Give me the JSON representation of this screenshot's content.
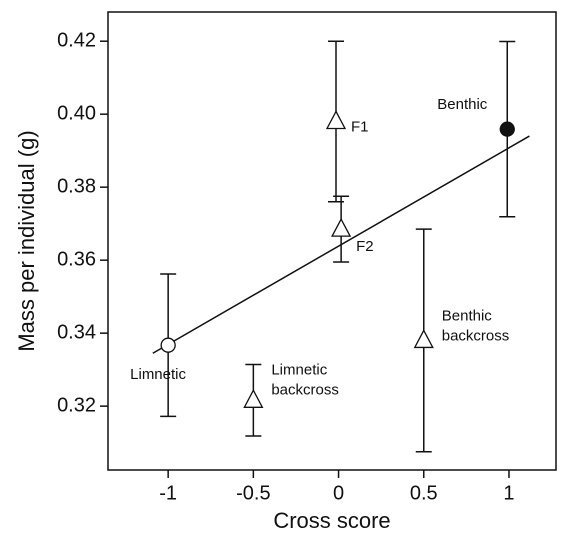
{
  "chart_data": {
    "type": "scatter",
    "xlabel": "Cross score",
    "ylabel": "Mass per individual (g)",
    "xlim": [
      -1.353,
      1.276
    ],
    "ylim": [
      0.3025,
      0.428
    ],
    "xticks": [
      -1,
      -0.5,
      0,
      0.5,
      1
    ],
    "yticks": [
      0.32,
      0.34,
      0.36,
      0.38,
      {
        "value": 0.4,
        "label": "0.40"
      },
      0.42
    ],
    "points": [
      {
        "label": [
          "Limnetic"
        ],
        "x": -1,
        "y": 0.3367,
        "error": 0.0195,
        "marker": "circle-open"
      },
      {
        "label": [
          "Limnetic",
          "backcross"
        ],
        "x": -0.5,
        "y": 0.3216,
        "error": 0.0098,
        "marker": "triangle-open"
      },
      {
        "label": [
          "F1"
        ],
        "x": -0.015,
        "y": 0.398,
        "error": 0.022,
        "marker": "triangle-open"
      },
      {
        "label": [
          "F2"
        ],
        "x": 0.015,
        "y": 0.3685,
        "error": 0.009,
        "marker": "triangle-open"
      },
      {
        "label": [
          "Benthic",
          "backcross"
        ],
        "x": 0.5,
        "y": 0.338,
        "error": 0.0305,
        "marker": "triangle-open"
      },
      {
        "label": [
          "Benthic"
        ],
        "x": 0.99,
        "y": 0.3959,
        "error": 0.024,
        "marker": "circle-filled"
      }
    ],
    "fit_line": {
      "x": [
        -1.09,
        1.12
      ],
      "y": [
        0.3345,
        0.394
      ]
    }
  }
}
